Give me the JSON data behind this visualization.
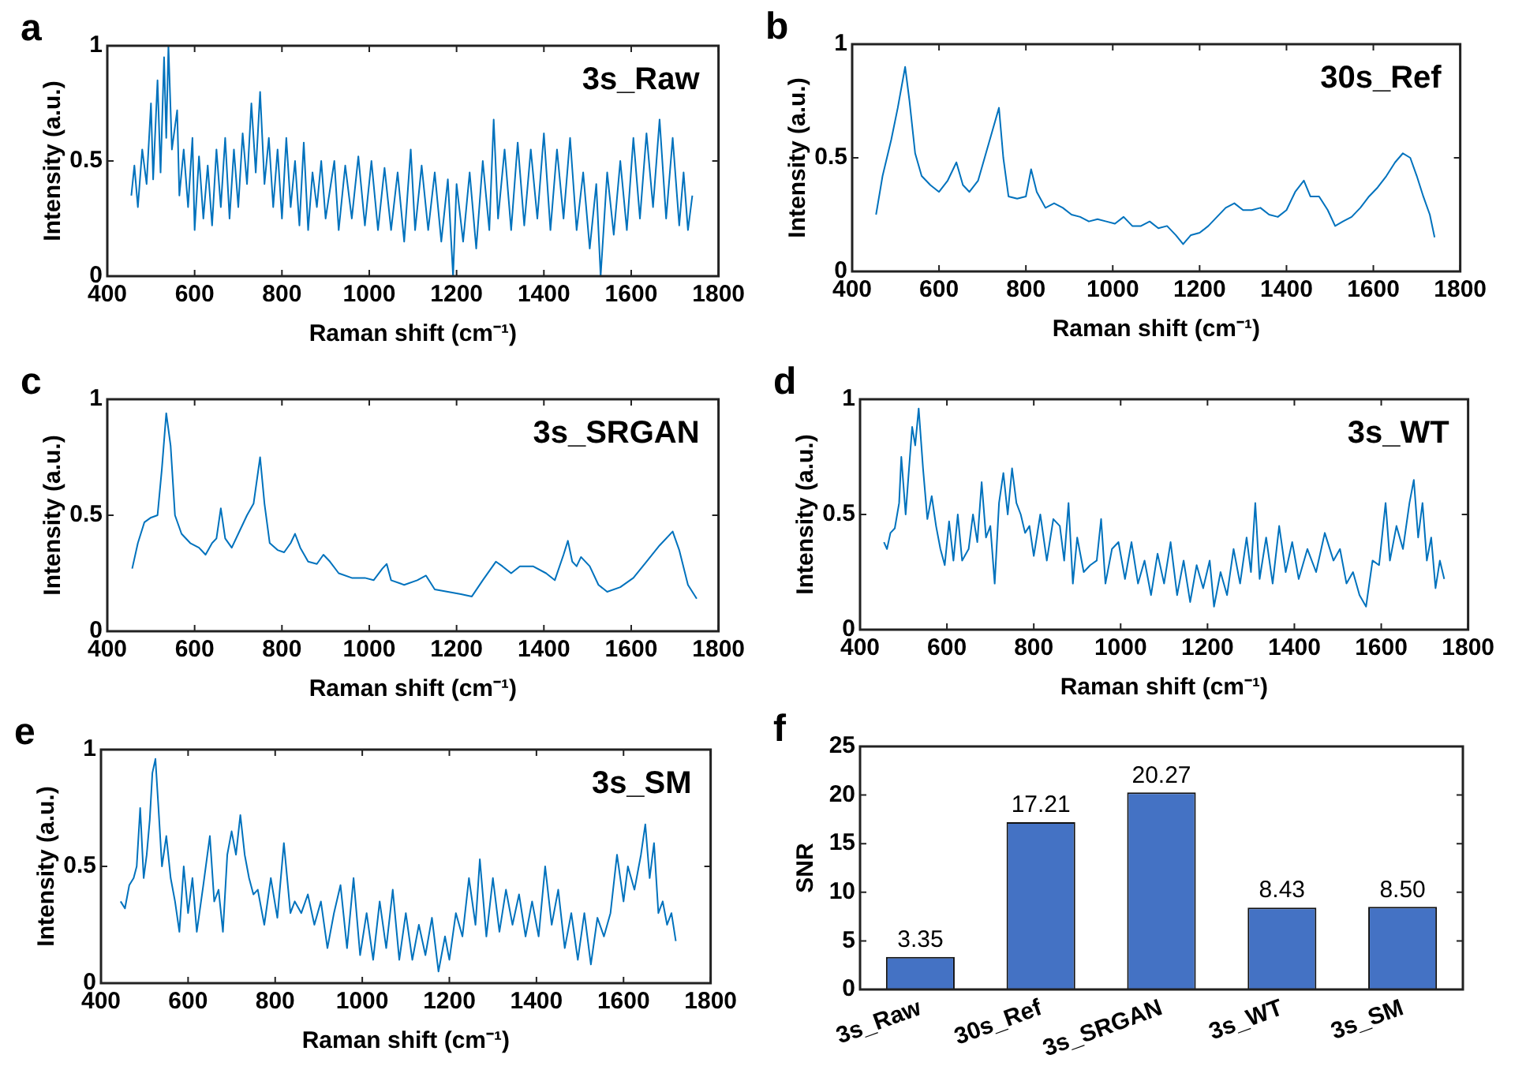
{
  "chart_data": [
    {
      "type": "line",
      "xlabel": "Raman shift (cm⁻¹)",
      "ylabel": "Intensity (a.u.)",
      "annotations": [
        "a",
        "3s_Raw"
      ],
      "xlim": [
        400,
        1800
      ],
      "xticks": [
        400,
        600,
        800,
        1000,
        1200,
        1400,
        1600,
        1800
      ],
      "ylim": [
        0,
        1
      ],
      "yticks": [
        0,
        0.5,
        1
      ],
      "series": [
        {
          "color": "#0072bd",
          "x": [
            455,
            462,
            470,
            480,
            490,
            500,
            505,
            515,
            522,
            530,
            535,
            540,
            548,
            560,
            565,
            575,
            585,
            595,
            600,
            610,
            620,
            630,
            640,
            650,
            660,
            670,
            680,
            690,
            700,
            710,
            720,
            730,
            740,
            750,
            760,
            770,
            780,
            790,
            800,
            810,
            820,
            830,
            840,
            850,
            860,
            870,
            880,
            890,
            900,
            920,
            930,
            945,
            960,
            975,
            990,
            1005,
            1020,
            1035,
            1050,
            1065,
            1080,
            1095,
            1105,
            1120,
            1135,
            1150,
            1165,
            1180,
            1192,
            1200,
            1215,
            1230,
            1245,
            1260,
            1275,
            1285,
            1295,
            1310,
            1325,
            1340,
            1355,
            1370,
            1385,
            1400,
            1415,
            1430,
            1445,
            1460,
            1475,
            1490,
            1505,
            1520,
            1530,
            1545,
            1560,
            1575,
            1590,
            1605,
            1620,
            1635,
            1650,
            1665,
            1680,
            1695,
            1710,
            1720,
            1730,
            1740
          ],
          "values": [
            0.35,
            0.48,
            0.3,
            0.55,
            0.4,
            0.75,
            0.42,
            0.85,
            0.45,
            0.95,
            0.6,
            1.0,
            0.55,
            0.72,
            0.35,
            0.55,
            0.3,
            0.6,
            0.2,
            0.52,
            0.25,
            0.48,
            0.22,
            0.55,
            0.3,
            0.6,
            0.25,
            0.55,
            0.3,
            0.62,
            0.4,
            0.75,
            0.45,
            0.8,
            0.4,
            0.6,
            0.3,
            0.55,
            0.25,
            0.6,
            0.3,
            0.5,
            0.22,
            0.58,
            0.2,
            0.45,
            0.3,
            0.5,
            0.25,
            0.5,
            0.2,
            0.48,
            0.25,
            0.52,
            0.22,
            0.5,
            0.2,
            0.47,
            0.2,
            0.45,
            0.15,
            0.55,
            0.2,
            0.48,
            0.2,
            0.45,
            0.15,
            0.42,
            0.0,
            0.4,
            0.15,
            0.45,
            0.12,
            0.5,
            0.2,
            0.68,
            0.25,
            0.55,
            0.2,
            0.58,
            0.22,
            0.55,
            0.25,
            0.62,
            0.2,
            0.55,
            0.25,
            0.6,
            0.2,
            0.45,
            0.12,
            0.4,
            0.0,
            0.45,
            0.18,
            0.5,
            0.2,
            0.6,
            0.25,
            0.62,
            0.3,
            0.68,
            0.25,
            0.6,
            0.22,
            0.45,
            0.2,
            0.35
          ]
        }
      ]
    },
    {
      "type": "line",
      "xlabel": "Raman shift (cm⁻¹)",
      "ylabel": "Intensity (a.u.)",
      "annotations": [
        "b",
        "30s_Ref"
      ],
      "xlim": [
        400,
        1800
      ],
      "xticks": [
        400,
        600,
        800,
        1000,
        1200,
        1400,
        1600,
        1800
      ],
      "ylim": [
        0,
        1
      ],
      "yticks": [
        0,
        0.5,
        1
      ],
      "series": [
        {
          "color": "#0072bd",
          "x": [
            455,
            470,
            490,
            505,
            522,
            532,
            545,
            560,
            580,
            600,
            620,
            640,
            655,
            670,
            690,
            705,
            720,
            738,
            748,
            760,
            780,
            800,
            812,
            825,
            845,
            865,
            885,
            905,
            925,
            945,
            965,
            985,
            1005,
            1025,
            1045,
            1065,
            1085,
            1105,
            1125,
            1145,
            1162,
            1180,
            1200,
            1220,
            1240,
            1260,
            1280,
            1300,
            1320,
            1340,
            1360,
            1380,
            1400,
            1420,
            1440,
            1455,
            1475,
            1495,
            1512,
            1530,
            1550,
            1570,
            1590,
            1610,
            1630,
            1650,
            1668,
            1685,
            1700,
            1715,
            1730,
            1741
          ],
          "values": [
            0.25,
            0.42,
            0.58,
            0.72,
            0.9,
            0.75,
            0.52,
            0.42,
            0.38,
            0.35,
            0.4,
            0.48,
            0.38,
            0.35,
            0.4,
            0.5,
            0.6,
            0.72,
            0.5,
            0.33,
            0.32,
            0.33,
            0.45,
            0.35,
            0.28,
            0.3,
            0.28,
            0.25,
            0.24,
            0.22,
            0.23,
            0.22,
            0.21,
            0.24,
            0.2,
            0.2,
            0.22,
            0.19,
            0.2,
            0.16,
            0.12,
            0.16,
            0.17,
            0.2,
            0.24,
            0.28,
            0.3,
            0.27,
            0.27,
            0.28,
            0.25,
            0.24,
            0.27,
            0.35,
            0.4,
            0.33,
            0.33,
            0.27,
            0.2,
            0.22,
            0.24,
            0.28,
            0.33,
            0.37,
            0.42,
            0.48,
            0.52,
            0.5,
            0.42,
            0.33,
            0.25,
            0.15
          ]
        }
      ]
    },
    {
      "type": "line",
      "xlabel": "Raman shift (cm⁻¹)",
      "ylabel": "Intensity (a.u.)",
      "annotations": [
        "c",
        "3s_SRGAN"
      ],
      "xlim": [
        400,
        1800
      ],
      "xticks": [
        400,
        600,
        800,
        1000,
        1200,
        1400,
        1600,
        1800
      ],
      "ylim": [
        0,
        1
      ],
      "yticks": [
        0,
        0.5,
        1
      ],
      "series": [
        {
          "color": "#0072bd",
          "x": [
            457,
            470,
            485,
            500,
            515,
            525,
            535,
            545,
            555,
            570,
            590,
            610,
            625,
            640,
            650,
            660,
            670,
            685,
            700,
            720,
            735,
            750,
            760,
            772,
            790,
            805,
            820,
            830,
            842,
            860,
            880,
            895,
            910,
            930,
            960,
            990,
            1010,
            1030,
            1040,
            1050,
            1080,
            1110,
            1130,
            1150,
            1180,
            1210,
            1235,
            1260,
            1290,
            1305,
            1325,
            1345,
            1375,
            1405,
            1425,
            1445,
            1455,
            1465,
            1475,
            1485,
            1505,
            1525,
            1545,
            1575,
            1605,
            1635,
            1665,
            1695,
            1710,
            1730,
            1750
          ],
          "values": [
            0.27,
            0.38,
            0.47,
            0.49,
            0.5,
            0.7,
            0.94,
            0.8,
            0.5,
            0.42,
            0.38,
            0.36,
            0.33,
            0.38,
            0.4,
            0.53,
            0.4,
            0.36,
            0.42,
            0.5,
            0.55,
            0.75,
            0.55,
            0.38,
            0.35,
            0.34,
            0.38,
            0.42,
            0.36,
            0.3,
            0.29,
            0.33,
            0.3,
            0.25,
            0.23,
            0.23,
            0.22,
            0.27,
            0.29,
            0.22,
            0.2,
            0.22,
            0.24,
            0.18,
            0.17,
            0.16,
            0.15,
            0.22,
            0.3,
            0.28,
            0.25,
            0.28,
            0.28,
            0.25,
            0.22,
            0.33,
            0.39,
            0.3,
            0.28,
            0.32,
            0.28,
            0.2,
            0.17,
            0.19,
            0.23,
            0.3,
            0.37,
            0.43,
            0.35,
            0.2,
            0.14
          ]
        }
      ]
    },
    {
      "type": "line",
      "xlabel": "Raman shift (cm⁻¹)",
      "ylabel": "Intensity (a.u.)",
      "annotations": [
        "d",
        "3s_WT"
      ],
      "xlim": [
        400,
        1800
      ],
      "xticks": [
        400,
        600,
        800,
        1000,
        1200,
        1400,
        1600,
        1800
      ],
      "ylim": [
        0,
        1
      ],
      "yticks": [
        0,
        0.5,
        1
      ],
      "series": [
        {
          "color": "#0072bd",
          "x": [
            455,
            462,
            470,
            480,
            490,
            495,
            505,
            512,
            520,
            527,
            535,
            545,
            555,
            565,
            575,
            585,
            595,
            605,
            615,
            625,
            635,
            650,
            660,
            670,
            680,
            690,
            700,
            710,
            720,
            730,
            740,
            750,
            760,
            770,
            780,
            790,
            800,
            815,
            830,
            845,
            860,
            870,
            880,
            890,
            900,
            915,
            930,
            945,
            955,
            965,
            980,
            995,
            1010,
            1025,
            1040,
            1055,
            1070,
            1085,
            1100,
            1115,
            1130,
            1145,
            1160,
            1175,
            1190,
            1205,
            1215,
            1230,
            1245,
            1260,
            1275,
            1290,
            1300,
            1310,
            1320,
            1335,
            1350,
            1365,
            1380,
            1395,
            1410,
            1430,
            1450,
            1470,
            1490,
            1505,
            1520,
            1535,
            1550,
            1565,
            1580,
            1595,
            1610,
            1620,
            1635,
            1650,
            1665,
            1675,
            1685,
            1695,
            1705,
            1715,
            1725,
            1735,
            1745
          ],
          "values": [
            0.38,
            0.35,
            0.42,
            0.44,
            0.55,
            0.75,
            0.5,
            0.68,
            0.88,
            0.8,
            0.96,
            0.7,
            0.48,
            0.58,
            0.45,
            0.35,
            0.28,
            0.47,
            0.3,
            0.5,
            0.3,
            0.35,
            0.5,
            0.38,
            0.64,
            0.4,
            0.45,
            0.2,
            0.55,
            0.68,
            0.5,
            0.7,
            0.55,
            0.5,
            0.42,
            0.45,
            0.32,
            0.5,
            0.3,
            0.48,
            0.45,
            0.3,
            0.55,
            0.2,
            0.4,
            0.25,
            0.28,
            0.3,
            0.48,
            0.2,
            0.35,
            0.38,
            0.22,
            0.38,
            0.2,
            0.3,
            0.15,
            0.33,
            0.2,
            0.38,
            0.15,
            0.3,
            0.12,
            0.28,
            0.18,
            0.3,
            0.1,
            0.25,
            0.15,
            0.35,
            0.2,
            0.4,
            0.25,
            0.55,
            0.22,
            0.4,
            0.2,
            0.45,
            0.25,
            0.38,
            0.22,
            0.35,
            0.25,
            0.42,
            0.3,
            0.35,
            0.2,
            0.25,
            0.15,
            0.1,
            0.3,
            0.28,
            0.55,
            0.3,
            0.45,
            0.35,
            0.55,
            0.65,
            0.4,
            0.55,
            0.3,
            0.4,
            0.18,
            0.3,
            0.22
          ]
        }
      ]
    },
    {
      "type": "line",
      "xlabel": "Raman shift (cm⁻¹)",
      "ylabel": "Intensity (a.u.)",
      "annotations": [
        "e",
        "3s_SM"
      ],
      "xlim": [
        400,
        1800
      ],
      "xticks": [
        400,
        600,
        800,
        1000,
        1200,
        1400,
        1600,
        1800
      ],
      "ylim": [
        0,
        1
      ],
      "yticks": [
        0,
        0.5,
        1
      ],
      "series": [
        {
          "color": "#0072bd",
          "x": [
            445,
            455,
            465,
            475,
            482,
            490,
            498,
            505,
            512,
            518,
            525,
            532,
            540,
            550,
            560,
            570,
            580,
            590,
            600,
            610,
            620,
            635,
            650,
            660,
            670,
            680,
            690,
            700,
            710,
            720,
            730,
            740,
            750,
            760,
            775,
            790,
            805,
            820,
            835,
            845,
            860,
            875,
            890,
            905,
            920,
            935,
            950,
            965,
            980,
            995,
            1010,
            1025,
            1040,
            1055,
            1070,
            1085,
            1100,
            1115,
            1130,
            1145,
            1160,
            1175,
            1190,
            1200,
            1215,
            1230,
            1245,
            1260,
            1270,
            1285,
            1300,
            1315,
            1330,
            1345,
            1360,
            1375,
            1390,
            1405,
            1420,
            1435,
            1450,
            1465,
            1480,
            1495,
            1510,
            1525,
            1540,
            1555,
            1570,
            1585,
            1600,
            1610,
            1625,
            1640,
            1650,
            1660,
            1670,
            1680,
            1690,
            1700,
            1710,
            1720
          ],
          "values": [
            0.35,
            0.32,
            0.42,
            0.45,
            0.5,
            0.75,
            0.45,
            0.55,
            0.7,
            0.9,
            0.96,
            0.75,
            0.5,
            0.63,
            0.45,
            0.35,
            0.22,
            0.5,
            0.3,
            0.45,
            0.22,
            0.42,
            0.63,
            0.35,
            0.4,
            0.22,
            0.55,
            0.65,
            0.55,
            0.72,
            0.55,
            0.45,
            0.38,
            0.4,
            0.25,
            0.45,
            0.28,
            0.6,
            0.3,
            0.35,
            0.3,
            0.38,
            0.25,
            0.35,
            0.15,
            0.3,
            0.42,
            0.15,
            0.45,
            0.12,
            0.3,
            0.1,
            0.35,
            0.15,
            0.4,
            0.1,
            0.3,
            0.1,
            0.25,
            0.12,
            0.28,
            0.05,
            0.2,
            0.1,
            0.3,
            0.2,
            0.45,
            0.25,
            0.53,
            0.2,
            0.45,
            0.22,
            0.4,
            0.25,
            0.38,
            0.2,
            0.35,
            0.2,
            0.5,
            0.25,
            0.4,
            0.15,
            0.3,
            0.1,
            0.3,
            0.08,
            0.28,
            0.2,
            0.3,
            0.55,
            0.35,
            0.5,
            0.4,
            0.55,
            0.68,
            0.45,
            0.6,
            0.3,
            0.35,
            0.25,
            0.3,
            0.18
          ]
        }
      ]
    },
    {
      "type": "bar",
      "ylabel": "SNR",
      "annotations": [
        "f"
      ],
      "categories": [
        "3s_Raw",
        "30s_Ref",
        "3s_SRGAN",
        "3s_WT",
        "3s_SM"
      ],
      "ylim": [
        0,
        25
      ],
      "yticks": [
        0,
        5,
        10,
        15,
        20,
        25
      ],
      "series": [
        {
          "color": "#4472c4",
          "values": [
            3.35,
            17.21,
            20.27,
            8.43,
            8.5
          ],
          "value_labels": [
            "3.35",
            "17.21",
            "20.27",
            "8.43",
            "8.50"
          ]
        }
      ]
    }
  ]
}
